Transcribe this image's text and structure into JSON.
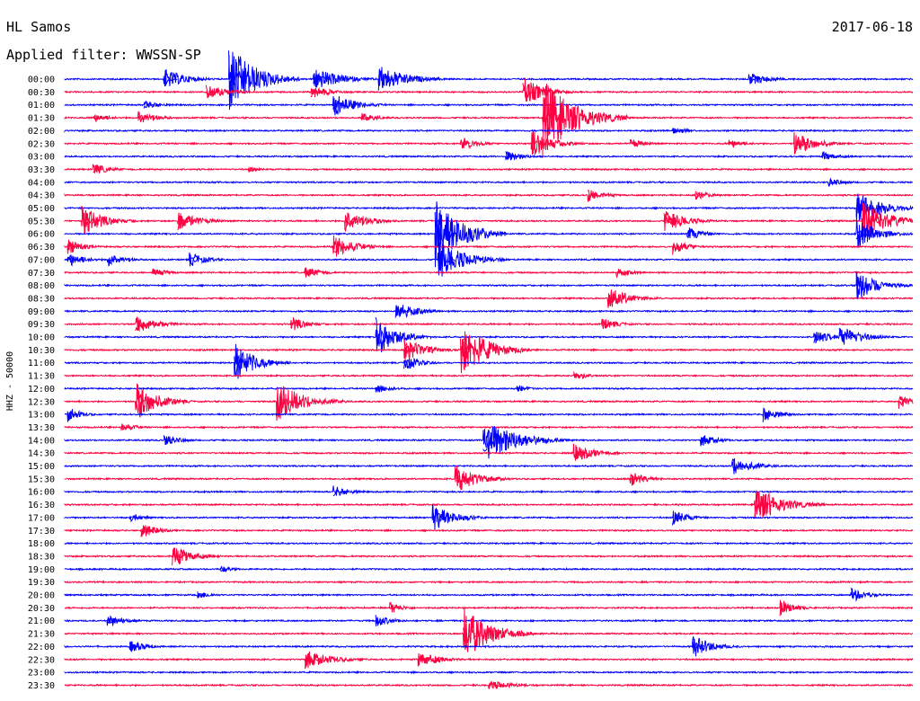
{
  "header": {
    "station": "HL Samos",
    "date": "2017-06-18",
    "filter_label": "Applied filter: WWSSN-SP"
  },
  "colors": {
    "even_row": "#0000ff",
    "odd_row": "#ff0040",
    "background": "#ffffff",
    "text": "#000000"
  },
  "chart_data": {
    "type": "line",
    "title": "HL Samos",
    "subtitle": "Applied filter: WWSSN-SP",
    "ylabel": "HHZ - 50000",
    "xlabel": "",
    "row_labels": [
      "00:00",
      "00:30",
      "01:00",
      "01:30",
      "02:00",
      "02:30",
      "03:00",
      "03:30",
      "04:00",
      "04:30",
      "05:00",
      "05:30",
      "06:00",
      "06:30",
      "07:00",
      "07:30",
      "08:00",
      "08:30",
      "09:00",
      "09:30",
      "10:00",
      "10:30",
      "11:00",
      "11:30",
      "12:00",
      "12:30",
      "13:00",
      "13:30",
      "14:00",
      "14:30",
      "15:00",
      "15:30",
      "16:00",
      "16:30",
      "17:00",
      "17:30",
      "18:00",
      "18:30",
      "19:00",
      "19:30",
      "20:00",
      "20:30",
      "21:00",
      "21:30",
      "22:00",
      "22:30",
      "23:00",
      "23:30"
    ],
    "row_minutes": 30,
    "grid": false,
    "events": [
      {
        "row": 0,
        "minute": 3.5,
        "amp": 1.4,
        "dur": 2.0
      },
      {
        "row": 0,
        "minute": 5.8,
        "amp": 4.5,
        "dur": 2.5
      },
      {
        "row": 0,
        "minute": 8.8,
        "amp": 1.5,
        "dur": 2.5
      },
      {
        "row": 0,
        "minute": 11.1,
        "amp": 1.8,
        "dur": 2.5
      },
      {
        "row": 0,
        "minute": 24.2,
        "amp": 0.8,
        "dur": 2.0
      },
      {
        "row": 1,
        "minute": 5.0,
        "amp": 1.0,
        "dur": 2.0
      },
      {
        "row": 1,
        "minute": 8.7,
        "amp": 0.8,
        "dur": 2.0
      },
      {
        "row": 1,
        "minute": 16.2,
        "amp": 2.0,
        "dur": 1.8
      },
      {
        "row": 2,
        "minute": 2.8,
        "amp": 0.6,
        "dur": 1.5
      },
      {
        "row": 2,
        "minute": 9.5,
        "amp": 1.5,
        "dur": 2.0
      },
      {
        "row": 3,
        "minute": 1.0,
        "amp": 0.6,
        "dur": 1.5
      },
      {
        "row": 3,
        "minute": 2.6,
        "amp": 1.0,
        "dur": 1.5
      },
      {
        "row": 3,
        "minute": 10.5,
        "amp": 0.6,
        "dur": 1.5
      },
      {
        "row": 3,
        "minute": 16.9,
        "amp": 5.0,
        "dur": 3.0
      },
      {
        "row": 4,
        "minute": 21.5,
        "amp": 0.5,
        "dur": 1.5
      },
      {
        "row": 5,
        "minute": 14.0,
        "amp": 1.0,
        "dur": 1.5
      },
      {
        "row": 5,
        "minute": 16.5,
        "amp": 1.8,
        "dur": 2.0
      },
      {
        "row": 5,
        "minute": 20.0,
        "amp": 0.6,
        "dur": 1.5
      },
      {
        "row": 5,
        "minute": 23.5,
        "amp": 0.6,
        "dur": 1.5
      },
      {
        "row": 5,
        "minute": 25.8,
        "amp": 1.5,
        "dur": 2.0
      },
      {
        "row": 6,
        "minute": 15.6,
        "amp": 0.8,
        "dur": 1.5
      },
      {
        "row": 6,
        "minute": 26.8,
        "amp": 0.6,
        "dur": 1.5
      },
      {
        "row": 7,
        "minute": 1.0,
        "amp": 0.8,
        "dur": 1.5
      },
      {
        "row": 7,
        "minute": 6.5,
        "amp": 0.4,
        "dur": 1.2
      },
      {
        "row": 8,
        "minute": 27.0,
        "amp": 0.6,
        "dur": 1.5
      },
      {
        "row": 9,
        "minute": 18.5,
        "amp": 0.8,
        "dur": 1.5
      },
      {
        "row": 9,
        "minute": 22.3,
        "amp": 0.6,
        "dur": 1.5
      },
      {
        "row": 10,
        "minute": 28.0,
        "amp": 2.0,
        "dur": 2.5
      },
      {
        "row": 11,
        "minute": 0.6,
        "amp": 2.0,
        "dur": 2.0
      },
      {
        "row": 11,
        "minute": 4.0,
        "amp": 1.2,
        "dur": 2.0
      },
      {
        "row": 11,
        "minute": 9.9,
        "amp": 1.5,
        "dur": 2.0
      },
      {
        "row": 11,
        "minute": 21.2,
        "amp": 1.5,
        "dur": 2.0
      },
      {
        "row": 11,
        "minute": 28.2,
        "amp": 2.5,
        "dur": 2.5
      },
      {
        "row": 12,
        "minute": 13.1,
        "amp": 4.5,
        "dur": 2.5
      },
      {
        "row": 12,
        "minute": 22.0,
        "amp": 1.0,
        "dur": 1.5
      },
      {
        "row": 12,
        "minute": 28.0,
        "amp": 2.0,
        "dur": 2.0
      },
      {
        "row": 13,
        "minute": 0.1,
        "amp": 1.0,
        "dur": 1.5
      },
      {
        "row": 13,
        "minute": 9.5,
        "amp": 1.5,
        "dur": 2.0
      },
      {
        "row": 13,
        "minute": 21.5,
        "amp": 1.0,
        "dur": 1.5
      },
      {
        "row": 14,
        "minute": 0.1,
        "amp": 1.0,
        "dur": 1.5
      },
      {
        "row": 14,
        "minute": 1.5,
        "amp": 1.0,
        "dur": 1.5
      },
      {
        "row": 14,
        "minute": 4.4,
        "amp": 1.0,
        "dur": 1.5
      },
      {
        "row": 14,
        "minute": 13.2,
        "amp": 2.5,
        "dur": 2.5
      },
      {
        "row": 15,
        "minute": 3.1,
        "amp": 0.6,
        "dur": 1.5
      },
      {
        "row": 15,
        "minute": 8.5,
        "amp": 0.8,
        "dur": 1.5
      },
      {
        "row": 15,
        "minute": 19.5,
        "amp": 0.6,
        "dur": 1.5
      },
      {
        "row": 16,
        "minute": 28.0,
        "amp": 2.0,
        "dur": 2.0
      },
      {
        "row": 17,
        "minute": 19.2,
        "amp": 1.5,
        "dur": 2.0
      },
      {
        "row": 18,
        "minute": 11.7,
        "amp": 1.2,
        "dur": 2.0
      },
      {
        "row": 19,
        "minute": 2.5,
        "amp": 1.2,
        "dur": 2.0
      },
      {
        "row": 19,
        "minute": 8.0,
        "amp": 1.0,
        "dur": 1.5
      },
      {
        "row": 19,
        "minute": 19.0,
        "amp": 0.8,
        "dur": 1.5
      },
      {
        "row": 20,
        "minute": 11.0,
        "amp": 2.5,
        "dur": 2.0
      },
      {
        "row": 20,
        "minute": 26.5,
        "amp": 1.0,
        "dur": 1.5
      },
      {
        "row": 20,
        "minute": 27.4,
        "amp": 1.5,
        "dur": 2.0
      },
      {
        "row": 21,
        "minute": 14.0,
        "amp": 3.5,
        "dur": 2.5
      },
      {
        "row": 21,
        "minute": 12.0,
        "amp": 1.5,
        "dur": 2.0
      },
      {
        "row": 22,
        "minute": 6.0,
        "amp": 2.5,
        "dur": 2.0
      },
      {
        "row": 22,
        "minute": 12.0,
        "amp": 1.0,
        "dur": 1.5
      },
      {
        "row": 23,
        "minute": 18.0,
        "amp": 0.6,
        "dur": 1.5
      },
      {
        "row": 24,
        "minute": 11.0,
        "amp": 0.6,
        "dur": 1.5
      },
      {
        "row": 24,
        "minute": 16.0,
        "amp": 0.5,
        "dur": 1.2
      },
      {
        "row": 25,
        "minute": 2.5,
        "amp": 2.5,
        "dur": 2.0
      },
      {
        "row": 25,
        "minute": 7.5,
        "amp": 2.5,
        "dur": 2.5
      },
      {
        "row": 25,
        "minute": 29.5,
        "amp": 1.0,
        "dur": 1.2
      },
      {
        "row": 26,
        "minute": 0.1,
        "amp": 1.0,
        "dur": 1.2
      },
      {
        "row": 26,
        "minute": 24.7,
        "amp": 1.0,
        "dur": 1.5
      },
      {
        "row": 27,
        "minute": 2.0,
        "amp": 0.6,
        "dur": 1.5
      },
      {
        "row": 28,
        "minute": 3.5,
        "amp": 0.8,
        "dur": 1.5
      },
      {
        "row": 28,
        "minute": 14.8,
        "amp": 3.0,
        "dur": 3.0
      },
      {
        "row": 28,
        "minute": 22.5,
        "amp": 0.8,
        "dur": 1.5
      },
      {
        "row": 29,
        "minute": 18.0,
        "amp": 1.2,
        "dur": 2.0
      },
      {
        "row": 30,
        "minute": 23.6,
        "amp": 1.2,
        "dur": 2.0
      },
      {
        "row": 31,
        "minute": 13.8,
        "amp": 2.0,
        "dur": 2.0
      },
      {
        "row": 31,
        "minute": 20.0,
        "amp": 1.0,
        "dur": 1.5
      },
      {
        "row": 32,
        "minute": 9.5,
        "amp": 0.8,
        "dur": 1.5
      },
      {
        "row": 33,
        "minute": 24.4,
        "amp": 2.5,
        "dur": 2.5
      },
      {
        "row": 34,
        "minute": 13.0,
        "amp": 1.8,
        "dur": 2.0
      },
      {
        "row": 34,
        "minute": 2.3,
        "amp": 0.6,
        "dur": 1.2
      },
      {
        "row": 34,
        "minute": 21.5,
        "amp": 1.0,
        "dur": 1.5
      },
      {
        "row": 35,
        "minute": 2.7,
        "amp": 1.0,
        "dur": 1.5
      },
      {
        "row": 37,
        "minute": 3.8,
        "amp": 1.5,
        "dur": 1.8
      },
      {
        "row": 38,
        "minute": 5.5,
        "amp": 0.5,
        "dur": 1.2
      },
      {
        "row": 40,
        "minute": 4.7,
        "amp": 0.6,
        "dur": 1.2
      },
      {
        "row": 40,
        "minute": 27.8,
        "amp": 1.0,
        "dur": 1.5
      },
      {
        "row": 41,
        "minute": 11.5,
        "amp": 0.8,
        "dur": 1.2
      },
      {
        "row": 41,
        "minute": 25.3,
        "amp": 1.0,
        "dur": 1.5
      },
      {
        "row": 42,
        "minute": 1.5,
        "amp": 0.8,
        "dur": 1.5
      },
      {
        "row": 42,
        "minute": 11.0,
        "amp": 0.8,
        "dur": 1.5
      },
      {
        "row": 43,
        "minute": 14.1,
        "amp": 3.5,
        "dur": 2.5
      },
      {
        "row": 44,
        "minute": 2.3,
        "amp": 0.8,
        "dur": 1.5
      },
      {
        "row": 44,
        "minute": 22.2,
        "amp": 1.5,
        "dur": 1.8
      },
      {
        "row": 45,
        "minute": 8.5,
        "amp": 1.2,
        "dur": 2.5
      },
      {
        "row": 45,
        "minute": 12.5,
        "amp": 1.0,
        "dur": 2.0
      },
      {
        "row": 47,
        "minute": 15.0,
        "amp": 0.6,
        "dur": 2.5
      }
    ]
  }
}
